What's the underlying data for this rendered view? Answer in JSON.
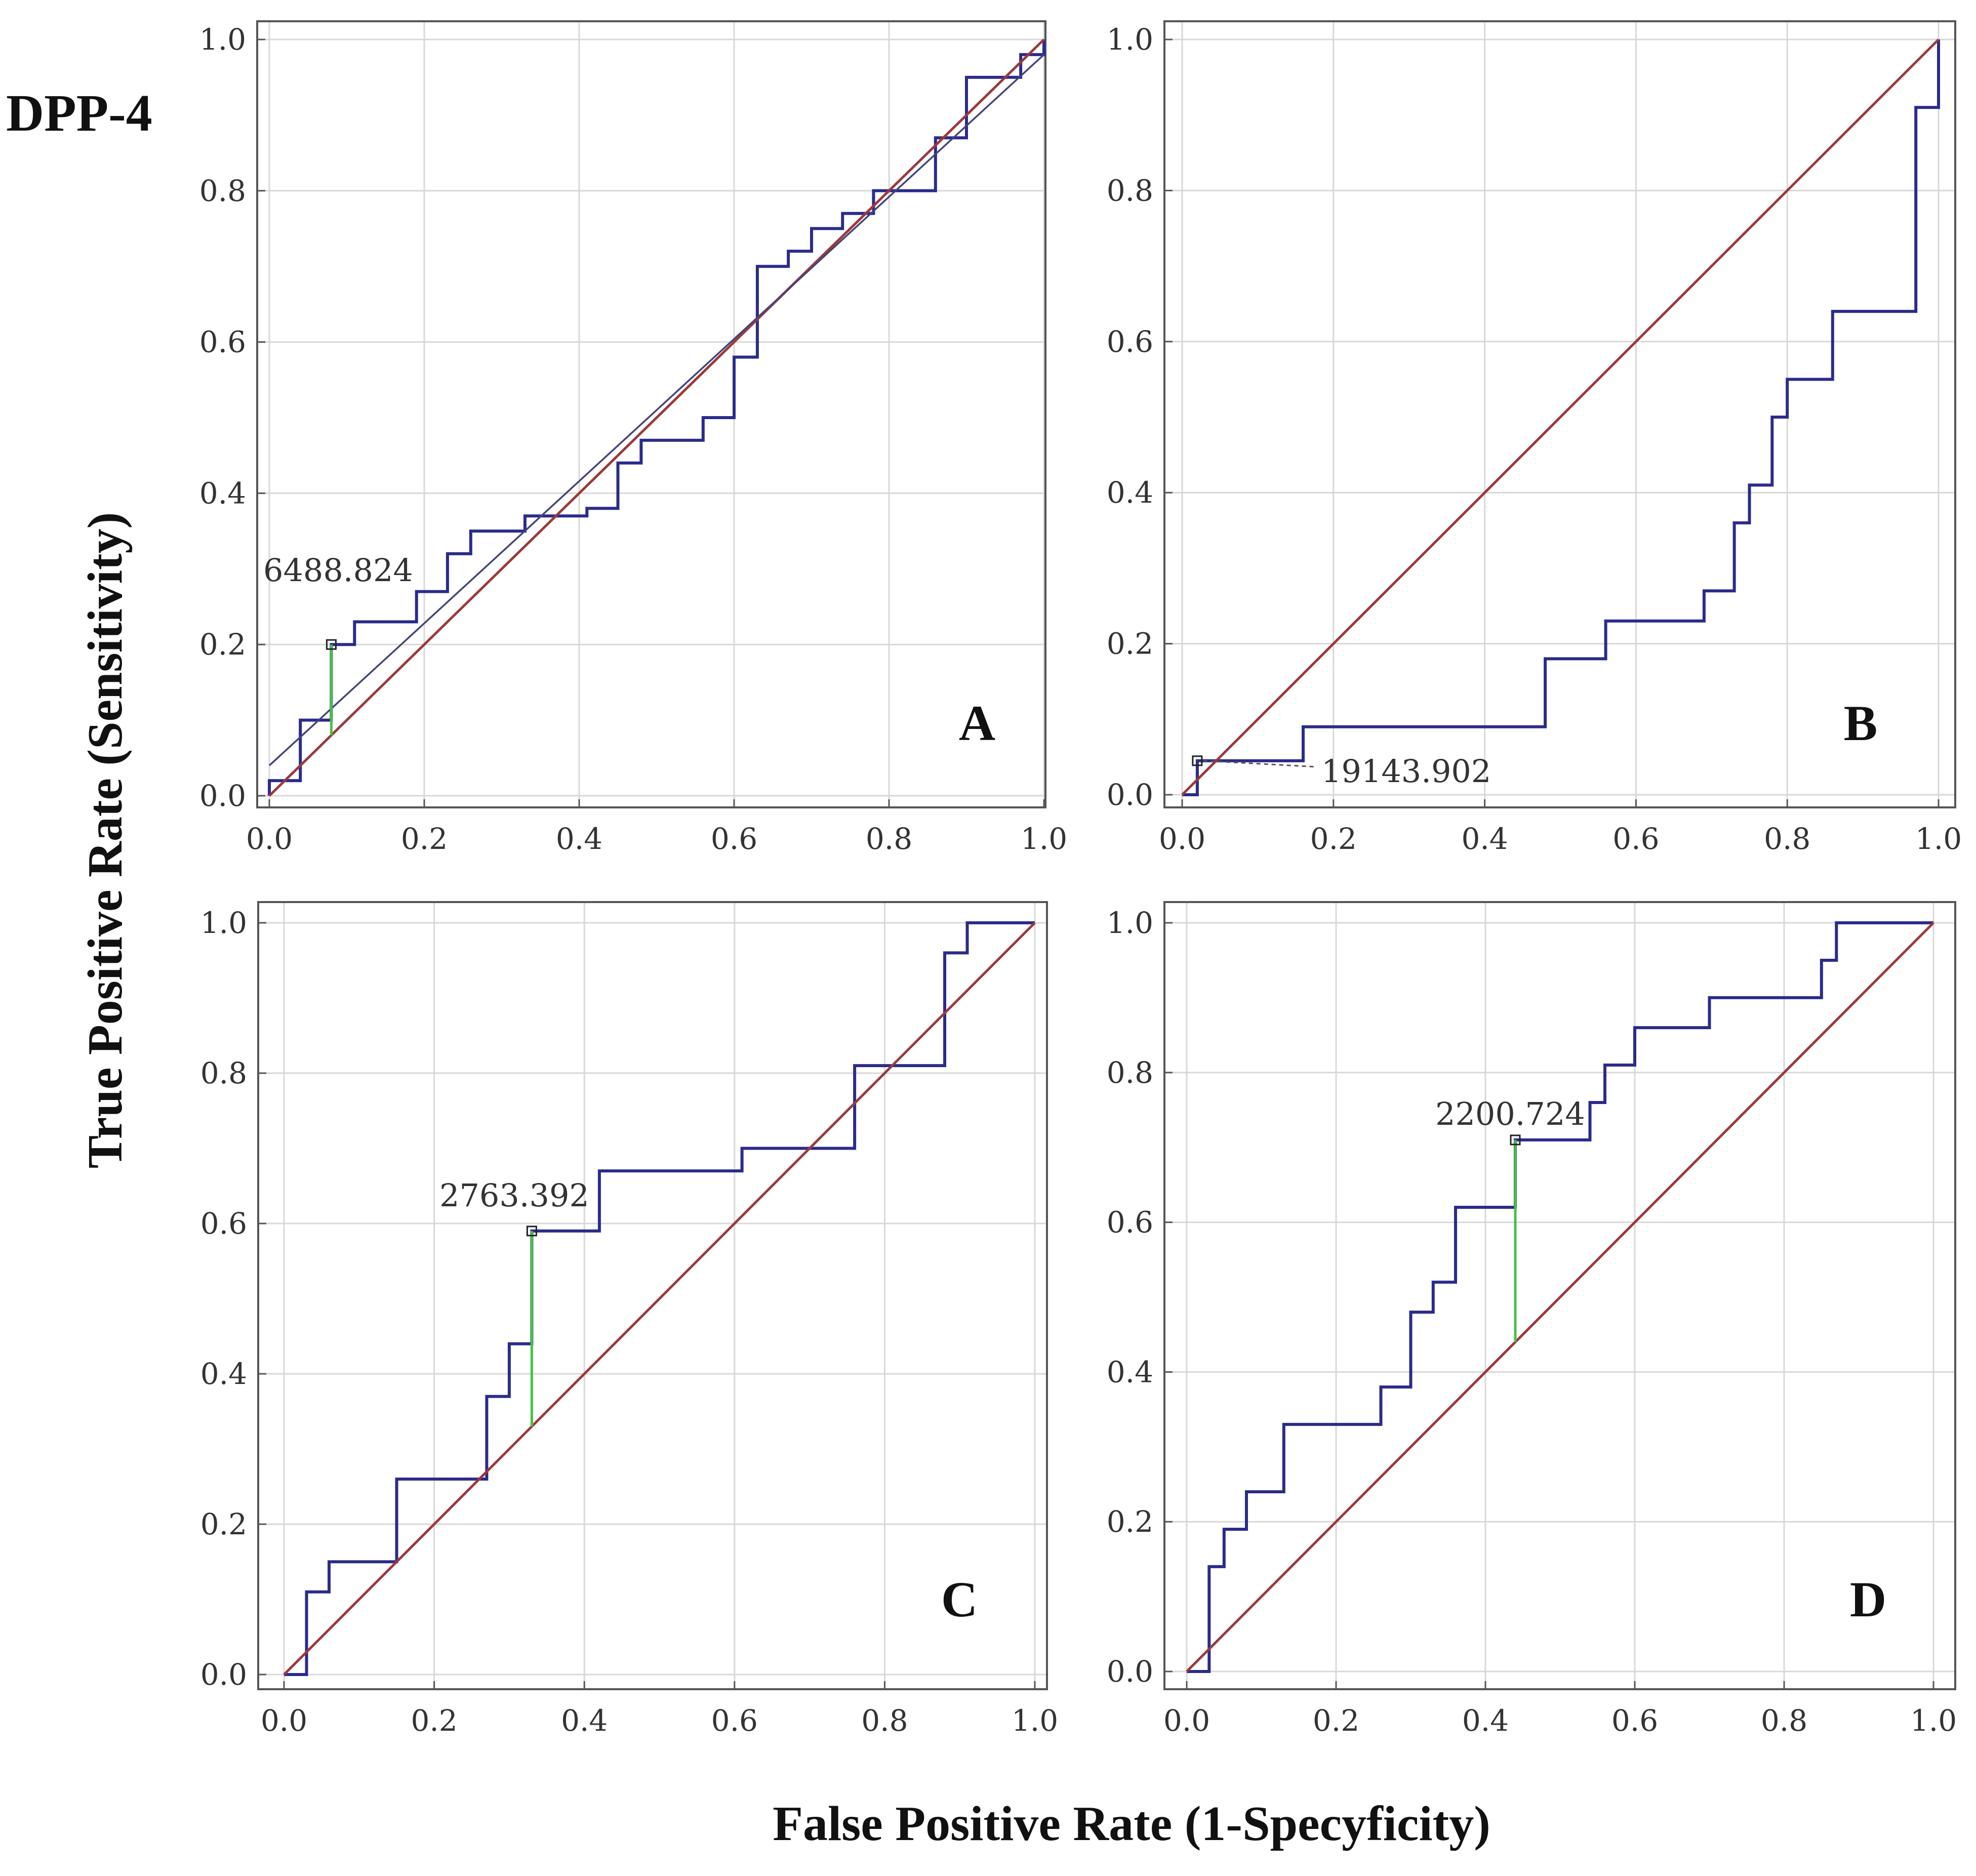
{
  "figure_title": "DPP-4",
  "y_axis_title": "True Positive Rate (Sensitivity)",
  "x_axis_title": "False Positive Rate (1-Specyficity)",
  "colors": {
    "roc": "#2b2b8c",
    "diagonal": "#9b3a3a",
    "cutoff": "#44c244",
    "trend": "#44447a",
    "grid": "#d8d8d8",
    "frame": "#555555",
    "marker": "#222222"
  },
  "chart_data": [
    {
      "type": "line",
      "panel": "A",
      "title": "",
      "xlabel": "False Positive Rate (1-Specyficity)",
      "ylabel": "True Positive Rate (Sensitivity)",
      "xlim": [
        0,
        1
      ],
      "ylim": [
        0,
        1
      ],
      "x_ticks": [
        "0.0",
        "0.2",
        "0.4",
        "0.6",
        "0.8",
        "1.0"
      ],
      "y_ticks": [
        "0.0",
        "0.2",
        "0.4",
        "0.6",
        "0.8",
        "1.0"
      ],
      "grid": true,
      "series": [
        {
          "name": "ROC curve",
          "x": [
            0,
            0,
            0.04,
            0.04,
            0.08,
            0.08,
            0.11,
            0.11,
            0.19,
            0.19,
            0.23,
            0.23,
            0.26,
            0.26,
            0.33,
            0.33,
            0.41,
            0.41,
            0.45,
            0.45,
            0.48,
            0.48,
            0.56,
            0.56,
            0.6,
            0.6,
            0.63,
            0.63,
            0.67,
            0.67,
            0.7,
            0.7,
            0.74,
            0.74,
            0.78,
            0.78,
            0.86,
            0.86,
            0.9,
            0.9,
            0.97,
            0.97,
            1.0,
            1.0
          ],
          "y": [
            0,
            0.02,
            0.02,
            0.1,
            0.1,
            0.2,
            0.2,
            0.23,
            0.23,
            0.27,
            0.27,
            0.32,
            0.32,
            0.35,
            0.35,
            0.37,
            0.37,
            0.38,
            0.38,
            0.44,
            0.44,
            0.47,
            0.47,
            0.5,
            0.5,
            0.58,
            0.58,
            0.7,
            0.7,
            0.72,
            0.72,
            0.75,
            0.75,
            0.77,
            0.77,
            0.8,
            0.8,
            0.87,
            0.87,
            0.95,
            0.95,
            0.98,
            0.98,
            1.0
          ]
        },
        {
          "name": "Reference line",
          "x": [
            0,
            1
          ],
          "y": [
            0,
            1
          ]
        },
        {
          "name": "Trend line",
          "x": [
            0,
            1
          ],
          "y": [
            0.04,
            0.98
          ]
        }
      ],
      "cutoff": {
        "label": "6488.824",
        "x": 0.08,
        "y": 0.2
      }
    },
    {
      "type": "line",
      "panel": "B",
      "title": "",
      "xlabel": "False Positive Rate (1-Specyficity)",
      "ylabel": "True Positive Rate (Sensitivity)",
      "xlim": [
        0,
        1
      ],
      "ylim": [
        0,
        1
      ],
      "x_ticks": [
        "0.0",
        "0.2",
        "0.4",
        "0.6",
        "0.8",
        "1.0"
      ],
      "y_ticks": [
        "0.0",
        "0.2",
        "0.4",
        "0.6",
        "0.8",
        "1.0"
      ],
      "grid": true,
      "series": [
        {
          "name": "ROC curve",
          "x": [
            0,
            0.02,
            0.02,
            0.16,
            0.16,
            0.48,
            0.48,
            0.56,
            0.56,
            0.69,
            0.69,
            0.73,
            0.73,
            0.75,
            0.75,
            0.78,
            0.78,
            0.8,
            0.8,
            0.86,
            0.86,
            0.9,
            0.9,
            0.97,
            0.97,
            1.0,
            1.0
          ],
          "y": [
            0,
            0,
            0.045,
            0.045,
            0.09,
            0.09,
            0.18,
            0.18,
            0.23,
            0.23,
            0.27,
            0.27,
            0.36,
            0.36,
            0.41,
            0.41,
            0.5,
            0.5,
            0.55,
            0.55,
            0.64,
            0.64,
            0.64,
            0.64,
            0.91,
            0.91,
            1.0
          ]
        },
        {
          "name": "Reference line",
          "x": [
            0,
            1
          ],
          "y": [
            0,
            1
          ]
        }
      ],
      "cutoff": {
        "label": "19143.902",
        "x": 0.02,
        "y": 0.045
      }
    },
    {
      "type": "line",
      "panel": "C",
      "title": "",
      "xlabel": "False Positive Rate (1-Specyficity)",
      "ylabel": "True Positive Rate (Sensitivity)",
      "xlim": [
        0,
        1
      ],
      "ylim": [
        0,
        1
      ],
      "x_ticks": [
        "0.0",
        "0.2",
        "0.4",
        "0.6",
        "0.8",
        "1.0"
      ],
      "y_ticks": [
        "0.0",
        "0.2",
        "0.4",
        "0.6",
        "0.8",
        "1.0"
      ],
      "grid": true,
      "series": [
        {
          "name": "ROC curve",
          "x": [
            0,
            0.03,
            0.03,
            0.06,
            0.06,
            0.15,
            0.15,
            0.27,
            0.27,
            0.3,
            0.3,
            0.33,
            0.33,
            0.42,
            0.42,
            0.61,
            0.61,
            0.76,
            0.76,
            0.88,
            0.88,
            0.91,
            0.91,
            1.0
          ],
          "y": [
            0,
            0,
            0.11,
            0.11,
            0.15,
            0.15,
            0.26,
            0.26,
            0.37,
            0.37,
            0.44,
            0.44,
            0.59,
            0.59,
            0.67,
            0.67,
            0.7,
            0.7,
            0.81,
            0.81,
            0.96,
            0.96,
            1.0,
            1.0
          ]
        },
        {
          "name": "Reference line",
          "x": [
            0,
            1
          ],
          "y": [
            0,
            1
          ]
        }
      ],
      "cutoff": {
        "label": "2763.392",
        "x": 0.33,
        "y": 0.59
      }
    },
    {
      "type": "line",
      "panel": "D",
      "title": "",
      "xlabel": "False Positive Rate (1-Specyficity)",
      "ylabel": "True Positive Rate (Sensitivity)",
      "xlim": [
        0,
        1
      ],
      "ylim": [
        0,
        1
      ],
      "x_ticks": [
        "0.0",
        "0.2",
        "0.4",
        "0.6",
        "0.8",
        "1.0"
      ],
      "y_ticks": [
        "0.0",
        "0.2",
        "0.4",
        "0.6",
        "0.8",
        "1.0"
      ],
      "grid": true,
      "series": [
        {
          "name": "ROC curve",
          "x": [
            0,
            0.03,
            0.03,
            0.05,
            0.05,
            0.08,
            0.08,
            0.13,
            0.13,
            0.26,
            0.26,
            0.3,
            0.3,
            0.33,
            0.33,
            0.36,
            0.36,
            0.44,
            0.44,
            0.54,
            0.54,
            0.56,
            0.56,
            0.6,
            0.6,
            0.66,
            0.66,
            0.7,
            0.7,
            0.85,
            0.85,
            0.87,
            0.87,
            1.0
          ],
          "y": [
            0,
            0,
            0.14,
            0.14,
            0.19,
            0.19,
            0.24,
            0.24,
            0.33,
            0.33,
            0.38,
            0.38,
            0.48,
            0.48,
            0.52,
            0.52,
            0.62,
            0.62,
            0.71,
            0.71,
            0.76,
            0.76,
            0.81,
            0.81,
            0.86,
            0.86,
            0.86,
            0.86,
            0.9,
            0.9,
            0.95,
            0.95,
            1.0,
            1.0
          ]
        },
        {
          "name": "Reference line",
          "x": [
            0,
            1
          ],
          "y": [
            0,
            1
          ]
        }
      ],
      "cutoff": {
        "label": "2200.724",
        "x": 0.44,
        "y": 0.71
      }
    }
  ]
}
